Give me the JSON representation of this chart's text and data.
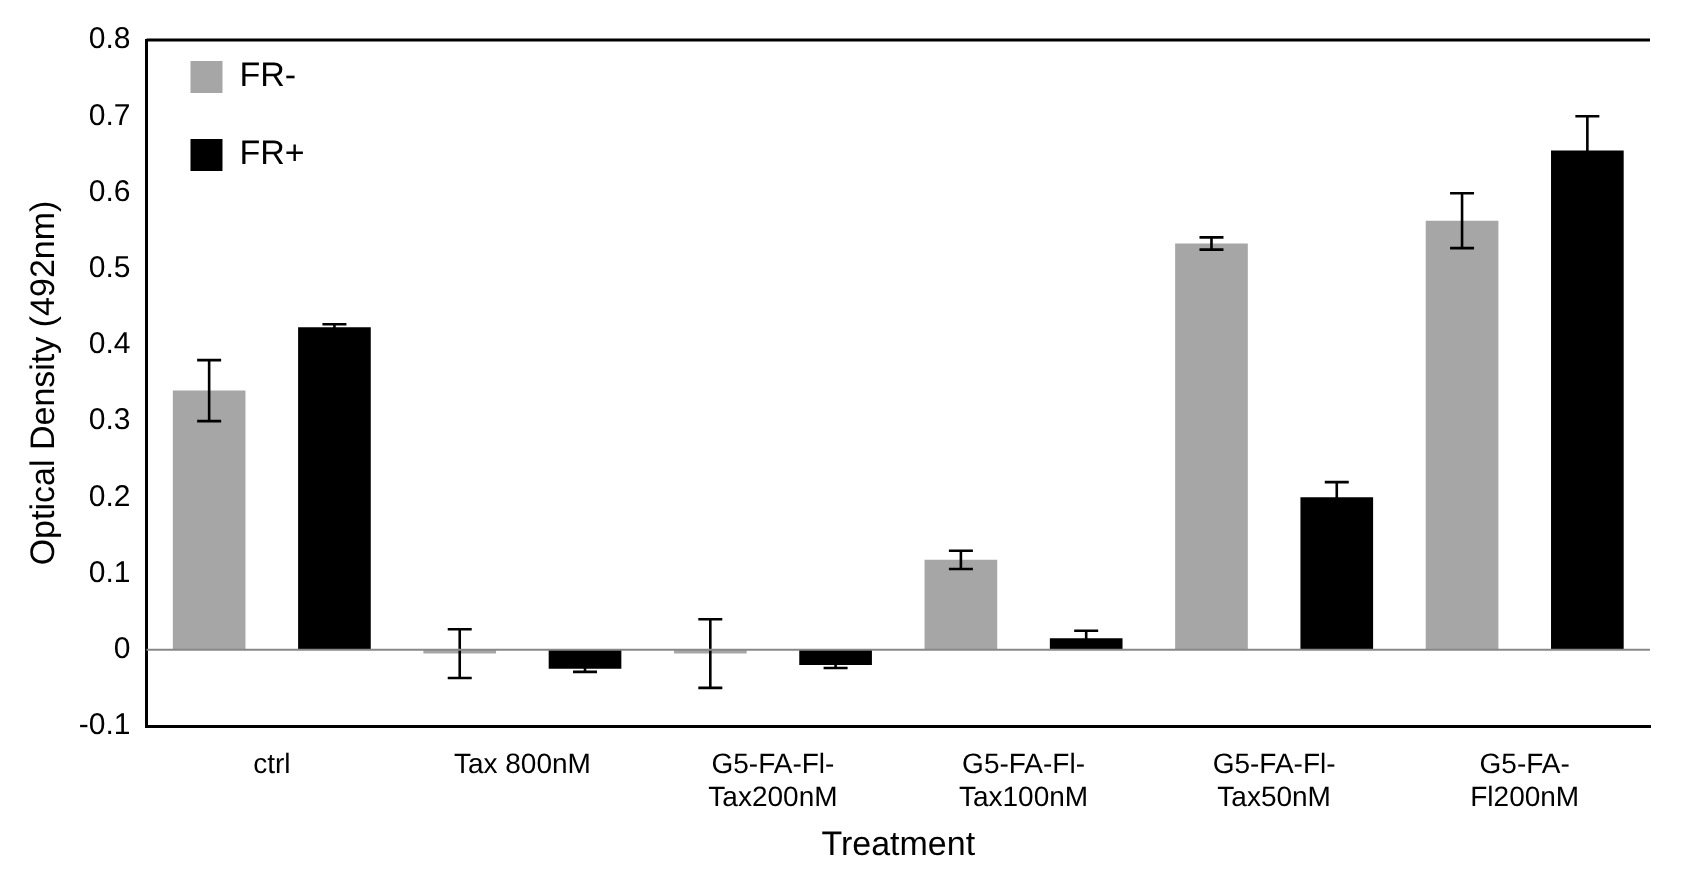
{
  "chart_data": {
    "type": "bar",
    "xlabel": "Treatment",
    "ylabel": "Optical Density (492nm)",
    "categories": [
      "ctrl",
      "Tax 800nM",
      "G5-FA-Fl-\nTax200nM",
      "G5-FA-Fl-\nTax100nM",
      "G5-FA-Fl-\nTax50nM",
      "G5-FA-\nFl200nM"
    ],
    "series": [
      {
        "name": "FR-",
        "color": "#a6a6a6",
        "values": [
          0.34,
          -0.005,
          -0.005,
          0.118,
          0.533,
          0.563
        ],
        "errors": [
          0.04,
          0.032,
          0.045,
          0.012,
          0.008,
          0.036
        ]
      },
      {
        "name": "FR+",
        "color": "#000000",
        "values": [
          0.423,
          -0.025,
          -0.02,
          0.015,
          0.2,
          0.655
        ],
        "errors": [
          0.004,
          0.004,
          0.004,
          0.01,
          0.02,
          0.045
        ]
      }
    ],
    "ylim": [
      -0.1,
      0.8
    ],
    "yticks": [
      -0.1,
      0,
      0.1,
      0.2,
      0.3,
      0.4,
      0.5,
      0.6,
      0.7,
      0.8
    ],
    "grid": false,
    "ref_lines": [
      {
        "axis": "y",
        "value": 0,
        "color": "#888888"
      }
    ],
    "legend": "top left"
  }
}
